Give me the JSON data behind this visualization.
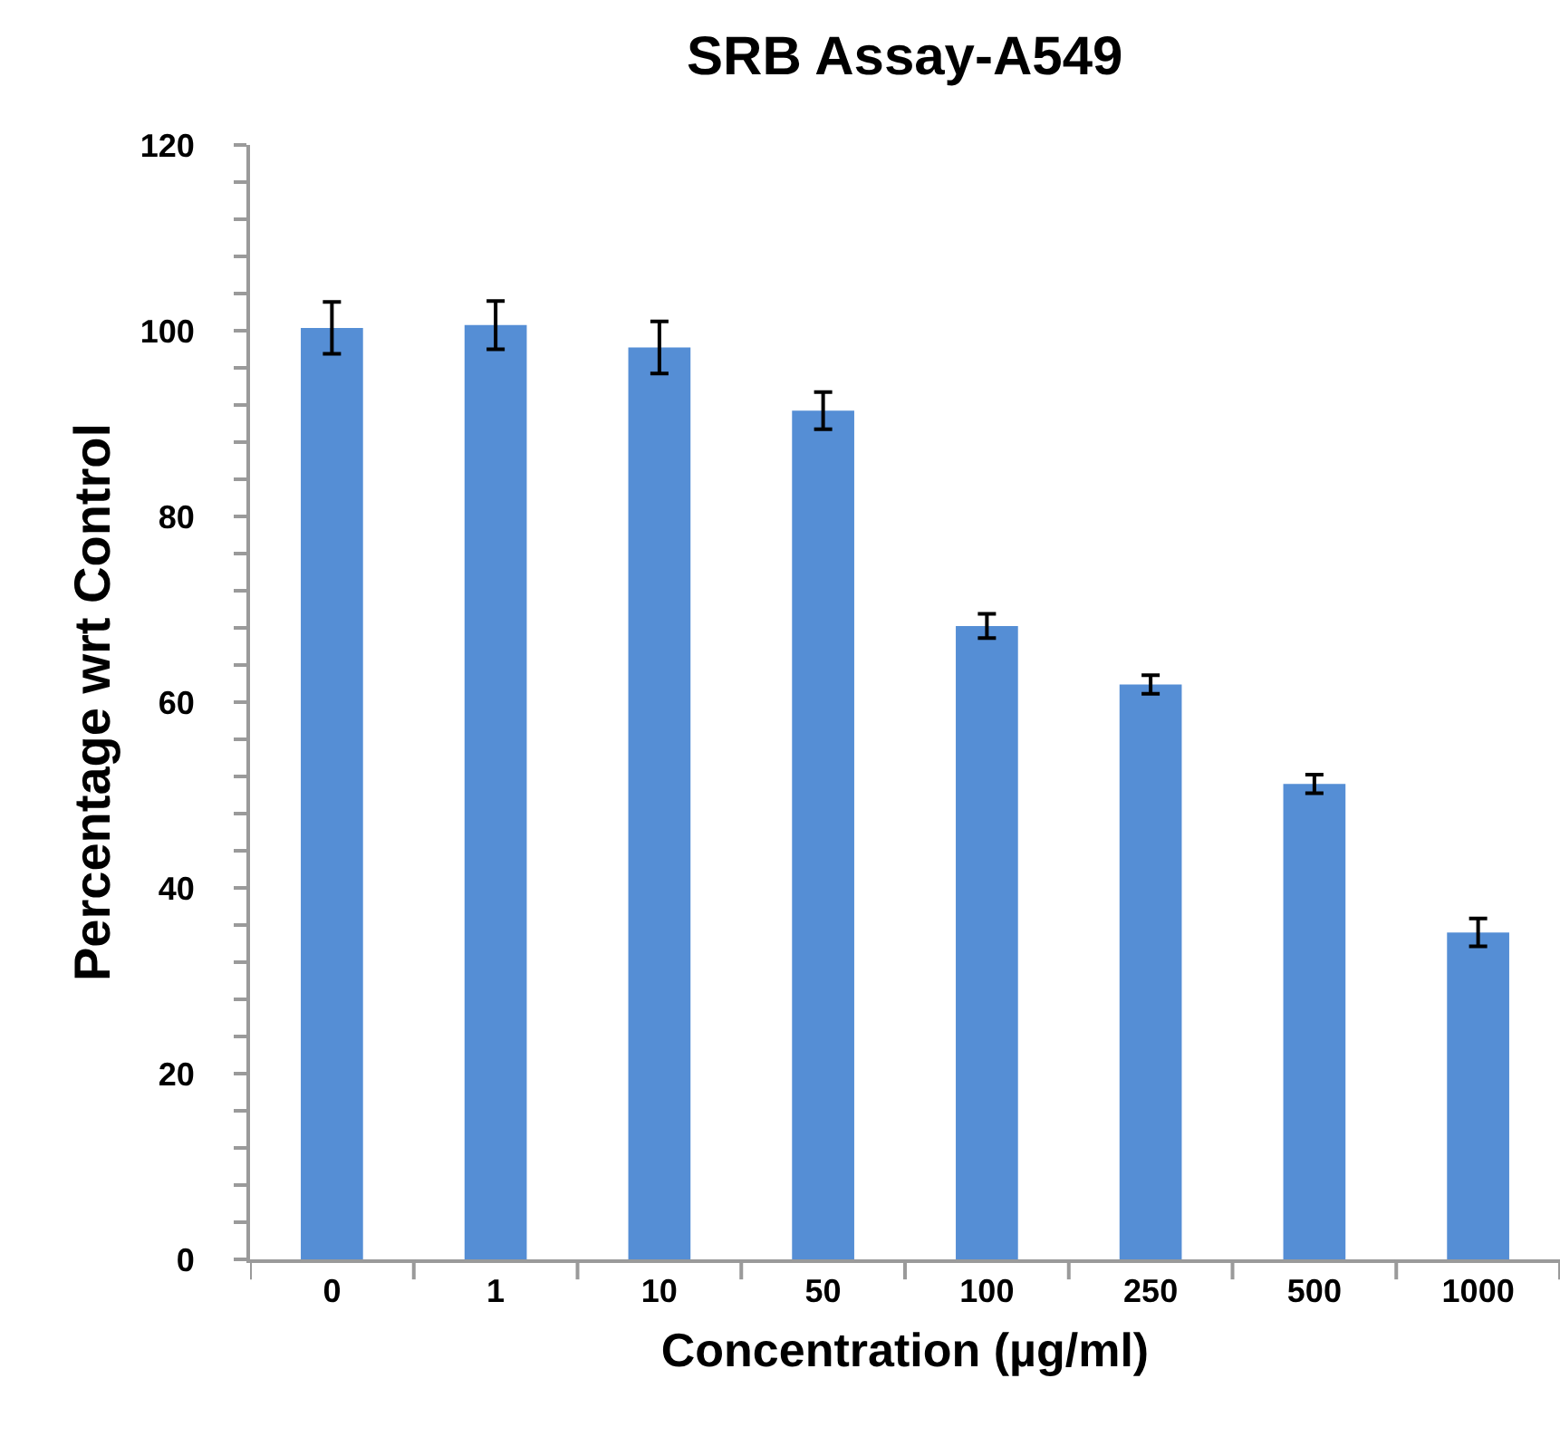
{
  "chart_data": {
    "type": "bar",
    "title": "SRB Assay-A549",
    "xlabel": "Concentration (µg/ml)",
    "ylabel": "Percentage wrt Control",
    "categories": [
      "0",
      "1",
      "10",
      "50",
      "100",
      "250",
      "500",
      "1000"
    ],
    "values": [
      100.3,
      100.6,
      98.2,
      91.4,
      68.2,
      61.9,
      51.2,
      35.2
    ],
    "errors": [
      2.8,
      2.6,
      2.8,
      2.0,
      1.3,
      1.0,
      1.0,
      1.5
    ],
    "color": "#558ed5",
    "ylim": [
      0,
      120
    ],
    "yticks": [
      0,
      {
        "value": 4,
        "label": null
      },
      {
        "value": 8,
        "label": null
      },
      {
        "value": 12,
        "label": null
      },
      {
        "value": 16,
        "label": null
      },
      20,
      {
        "value": 24,
        "label": null
      },
      {
        "value": 28,
        "label": null
      },
      {
        "value": 32,
        "label": null
      },
      {
        "value": 36,
        "label": null
      },
      40,
      {
        "value": 44,
        "label": null
      },
      {
        "value": 48,
        "label": null
      },
      {
        "value": 52,
        "label": null
      },
      {
        "value": 56,
        "label": null
      },
      60,
      {
        "value": 64,
        "label": null
      },
      {
        "value": 68,
        "label": null
      },
      {
        "value": 72,
        "label": null
      },
      {
        "value": 76,
        "label": null
      },
      80,
      {
        "value": 84,
        "label": null
      },
      {
        "value": 88,
        "label": null
      },
      {
        "value": 92,
        "label": null
      },
      {
        "value": 96,
        "label": null
      },
      100,
      {
        "value": 104,
        "label": null
      },
      {
        "value": 108,
        "label": null
      },
      {
        "value": 112,
        "label": null
      },
      {
        "value": 116,
        "label": null
      },
      120
    ],
    "grid": false
  }
}
